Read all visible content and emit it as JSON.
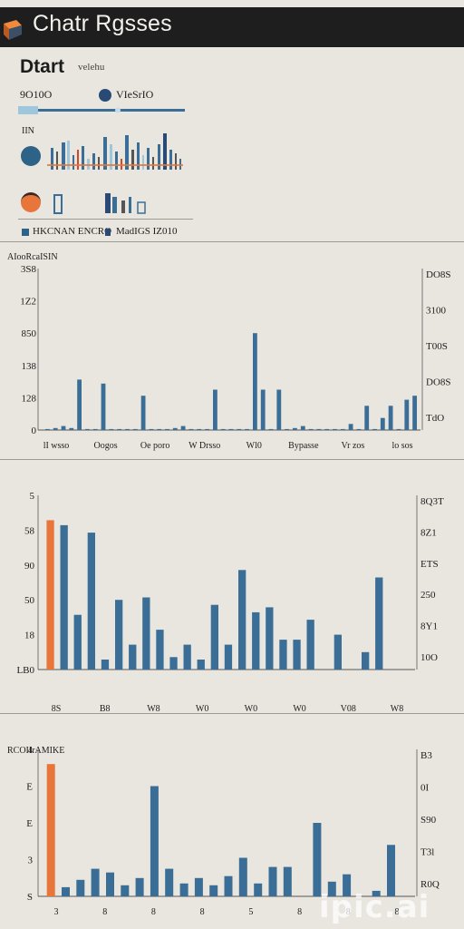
{
  "app": {
    "title": "Chatr Rgsses"
  },
  "header": {
    "title": "Dtart",
    "subtitle": "velehu"
  },
  "summary": {
    "stat_label": "9O10O",
    "legend_label": "VIeSrIO",
    "small_label": "IIN",
    "legend_items": [
      "HKCNAN ENCRO",
      "MadIGS IZ010"
    ]
  },
  "colors": {
    "primary": "#3a6e96",
    "secondary": "#e8763a",
    "dark": "#1e1e1e",
    "light_blue": "#9ec6dc"
  },
  "icons": [
    "logo-cube-icon",
    "legend-dot-icon",
    "avatar-circle-icon"
  ],
  "chart_data": [
    {
      "type": "bar",
      "title": "AIooRcaISIN",
      "yticks_left": [
        "0",
        "128",
        "138",
        "850",
        "1Z2",
        "3S8"
      ],
      "yticks_right": [
        "TdO",
        "DO8S",
        "T00S",
        "3100",
        "DO8S"
      ],
      "xticks": [
        "lI wsso",
        "Oogos",
        "Oe poro",
        "W Drsso",
        "Wl0",
        "Bypasse",
        "Vr zos",
        "lo sos"
      ],
      "series": [
        {
          "values": [
            0.5,
            1,
            2,
            1,
            25,
            0.5,
            0.5,
            23,
            0.5,
            0.5,
            0.5,
            0.5,
            17,
            0.5,
            0.5,
            0.5,
            1,
            2,
            0.5,
            0.5,
            0.5,
            20,
            0.5,
            0.5,
            0.5,
            0.5,
            48,
            20,
            0.5,
            20,
            0.5,
            1,
            2,
            0.5,
            0.5,
            0.5,
            0.5,
            0.5,
            3,
            0.5,
            12,
            0.5,
            6,
            12,
            0.5,
            15,
            17
          ]
        }
      ],
      "ylim": [
        0,
        80
      ]
    },
    {
      "type": "bar",
      "yticks_left": [
        "LB0",
        "18",
        "50",
        "90",
        "58",
        "5"
      ],
      "yticks_right": [
        "10O",
        "8Y1",
        "250",
        "ETS",
        "8Z1",
        "8Q3T"
      ],
      "xticks": [
        "8S",
        "B8",
        "W8",
        "W0",
        "W0",
        "W0",
        "V08",
        "W8"
      ],
      "series": [
        {
          "name": "",
          "values": [
            60,
            0,
            0,
            0,
            0,
            0,
            0,
            0,
            0,
            0,
            0,
            0,
            0,
            0,
            0,
            0,
            0,
            0,
            0,
            0,
            0,
            0,
            0,
            0,
            0,
            0,
            0
          ]
        },
        {
          "name": "",
          "values": [
            0,
            58,
            22,
            55,
            4,
            28,
            10,
            29,
            16,
            5,
            10,
            4,
            26,
            10,
            40,
            23,
            25,
            12,
            12,
            20,
            0,
            14,
            0,
            7,
            37,
            0,
            0
          ]
        }
      ],
      "ylim": [
        0,
        70
      ]
    },
    {
      "type": "bar",
      "title": "RCOIIrAMIKE",
      "yticks_left": [
        "S",
        "3",
        "E",
        "E",
        "4"
      ],
      "yticks_right": [
        "R0Q",
        "T3l",
        "S90",
        "0I",
        "B3"
      ],
      "xticks": [
        "3",
        "8",
        "8",
        "8",
        "5",
        "8",
        "8",
        "8"
      ],
      "series": [
        {
          "name": "",
          "values": [
            72,
            0,
            0,
            0,
            0,
            0,
            0,
            0,
            0,
            0,
            0,
            0,
            0,
            0,
            0,
            0,
            0,
            0,
            0,
            0,
            0,
            0,
            0,
            0,
            0
          ]
        },
        {
          "name": "",
          "values": [
            0,
            5,
            9,
            15,
            13,
            6,
            10,
            60,
            15,
            7,
            10,
            6,
            11,
            21,
            7,
            16,
            16,
            0,
            40,
            8,
            12,
            0,
            3,
            28,
            0
          ]
        }
      ],
      "ylim": [
        0,
        80
      ]
    }
  ]
}
